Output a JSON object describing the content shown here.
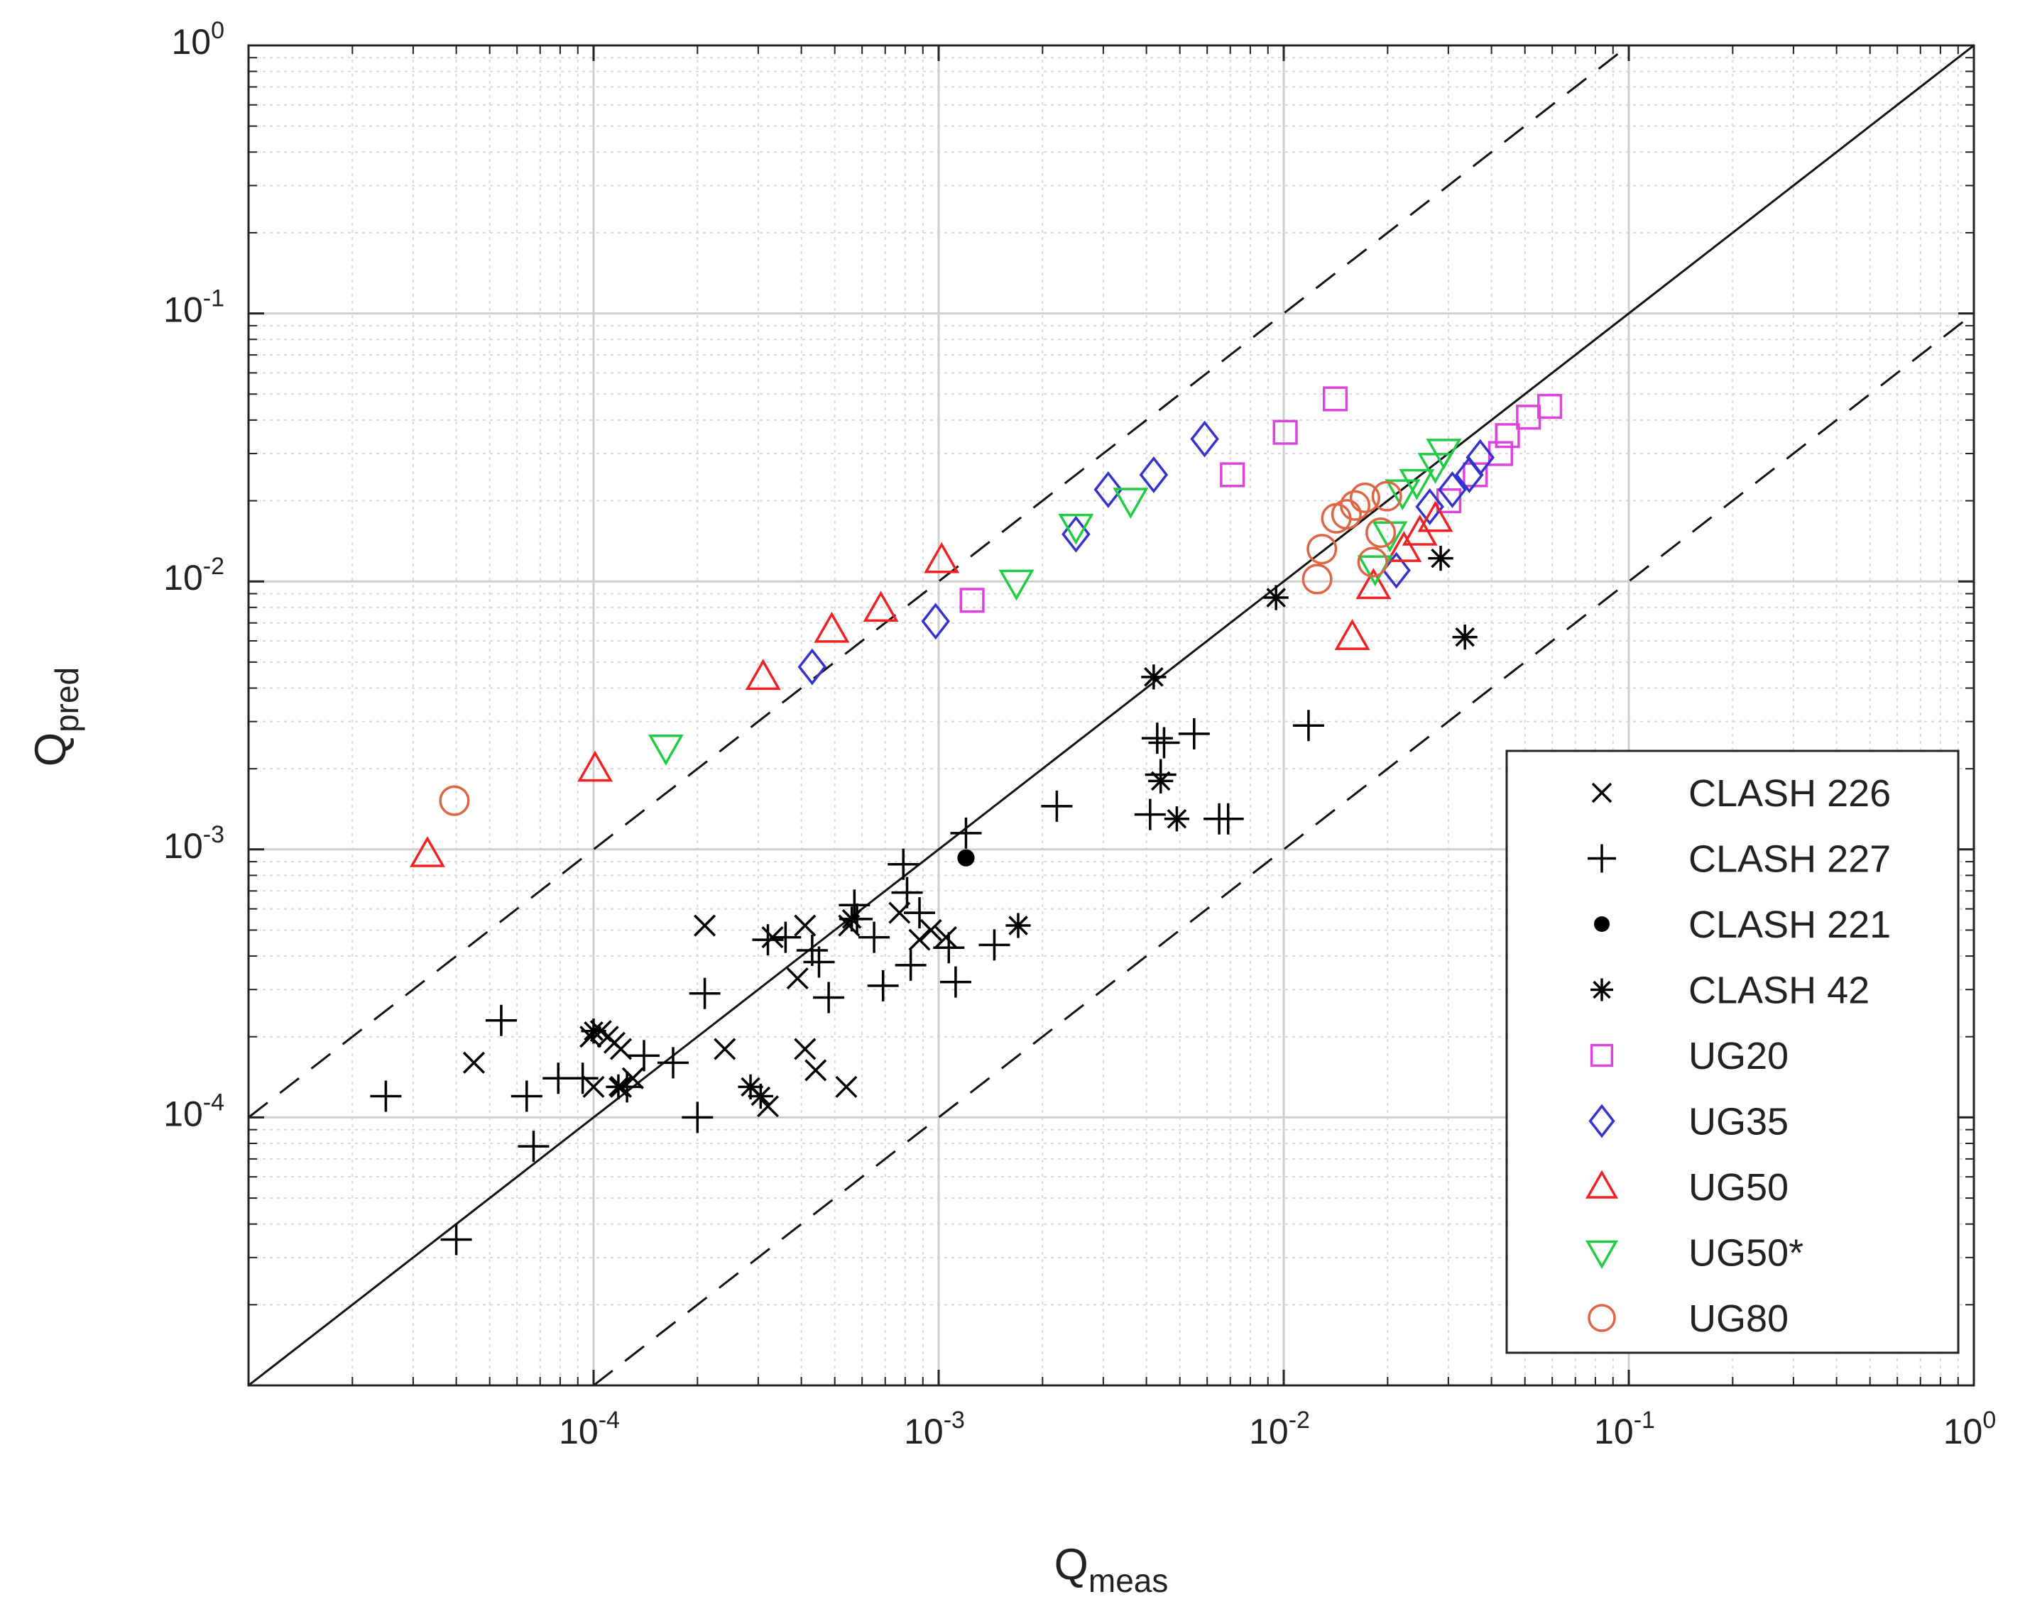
{
  "chart_data": {
    "type": "scatter",
    "x_scale": "log",
    "y_scale": "log",
    "xlim": [
      1e-05,
      1
    ],
    "ylim": [
      1e-05,
      1
    ],
    "grid": true,
    "legend_position": "bottom-right",
    "xlabel": {
      "base": "Q",
      "sub": "meas"
    },
    "ylabel": {
      "base": "Q",
      "sub": "pred"
    },
    "x_ticks": [
      {
        "base": "10",
        "exp": "-4",
        "value": 0.0001
      },
      {
        "base": "10",
        "exp": "-3",
        "value": 0.001
      },
      {
        "base": "10",
        "exp": "-2",
        "value": 0.01
      },
      {
        "base": "10",
        "exp": "-1",
        "value": 0.1
      },
      {
        "base": "10",
        "exp": "0",
        "value": 1
      }
    ],
    "y_ticks": [
      {
        "base": "10",
        "exp": "-4",
        "value": 0.0001
      },
      {
        "base": "10",
        "exp": "-3",
        "value": 0.001
      },
      {
        "base": "10",
        "exp": "-2",
        "value": 0.01
      },
      {
        "base": "10",
        "exp": "-1",
        "value": 0.1
      },
      {
        "base": "10",
        "exp": "0",
        "value": 1
      }
    ],
    "reference_lines": [
      {
        "name": "line of perfect agreement",
        "style": "solid",
        "factor": 1
      },
      {
        "name": "factor 10 over",
        "style": "dashed",
        "factor": 10
      },
      {
        "name": "factor 10 under",
        "style": "dashed",
        "factor": 0.1
      }
    ],
    "series": [
      {
        "name": "CLASH 226",
        "marker": "x",
        "color": "#000000",
        "points": [
          [
            4.5e-05,
            0.00016
          ],
          [
            0.0001,
            0.00013
          ],
          [
            9.8e-05,
            0.0002
          ],
          [
            0.000105,
            0.00021
          ],
          [
            0.00011,
            0.0002
          ],
          [
            0.000115,
            0.00019
          ],
          [
            0.00012,
            0.00018
          ],
          [
            0.00012,
            0.00013
          ],
          [
            0.00013,
            0.00014
          ],
          [
            0.00021,
            0.00052
          ],
          [
            0.00024,
            0.00018
          ],
          [
            0.00032,
            0.00011
          ],
          [
            0.00033,
            0.00047
          ],
          [
            0.00039,
            0.00033
          ],
          [
            0.00041,
            0.00018
          ],
          [
            0.00041,
            0.00052
          ],
          [
            0.00044,
            0.00015
          ],
          [
            0.00054,
            0.00013
          ],
          [
            0.00055,
            0.00052
          ],
          [
            0.00077,
            0.00058
          ],
          [
            0.00088,
            0.00046
          ],
          [
            0.00095,
            0.0005
          ],
          [
            0.00105,
            0.00047
          ]
        ]
      },
      {
        "name": "CLASH 227",
        "marker": "+",
        "color": "#000000",
        "points": [
          [
            2.5e-05,
            0.00012
          ],
          [
            4e-05,
            3.5e-05
          ],
          [
            5.4e-05,
            0.00023
          ],
          [
            6.4e-05,
            0.00012
          ],
          [
            6.7e-05,
            7.8e-05
          ],
          [
            7.9e-05,
            0.00014
          ],
          [
            9.3e-05,
            0.00014
          ],
          [
            0.000125,
            0.00013
          ],
          [
            0.00014,
            0.00017
          ],
          [
            0.00017,
            0.00016
          ],
          [
            0.0002,
            0.0001
          ],
          [
            0.00021,
            0.00029
          ],
          [
            0.00032,
            0.00046
          ],
          [
            0.00036,
            0.00047
          ],
          [
            0.00043,
            0.00042
          ],
          [
            0.00045,
            0.00038
          ],
          [
            0.00048,
            0.00028
          ],
          [
            0.00057,
            0.00062
          ],
          [
            0.00058,
            0.00055
          ],
          [
            0.00065,
            0.00047
          ],
          [
            0.00069,
            0.00031
          ],
          [
            0.00079,
            0.00088
          ],
          [
            0.00081,
            0.00069
          ],
          [
            0.00083,
            0.00037
          ],
          [
            0.00088,
            0.00058
          ],
          [
            0.00107,
            0.00043
          ],
          [
            0.00112,
            0.00032
          ],
          [
            0.0012,
            0.00115
          ],
          [
            0.00145,
            0.00044
          ],
          [
            0.0022,
            0.00145
          ],
          [
            0.0041,
            0.00135
          ],
          [
            0.0043,
            0.0026
          ],
          [
            0.0044,
            0.0019
          ],
          [
            0.0045,
            0.0025
          ],
          [
            0.0055,
            0.0027
          ],
          [
            0.0065,
            0.0013
          ],
          [
            0.0069,
            0.0013
          ],
          [
            0.0118,
            0.0029
          ]
        ]
      },
      {
        "name": "CLASH 221",
        "marker": "filled-circle",
        "color": "#000000",
        "points": [
          [
            0.0012,
            0.00093
          ]
        ]
      },
      {
        "name": "CLASH 42",
        "marker": "asterisk",
        "color": "#000000",
        "points": [
          [
            0.0001,
            0.00021
          ],
          [
            0.000118,
            0.00013
          ],
          [
            0.000285,
            0.00013
          ],
          [
            0.000305,
            0.00012
          ],
          [
            0.00056,
            0.00055
          ],
          [
            0.0017,
            0.00052
          ],
          [
            0.0042,
            0.0044
          ],
          [
            0.0044,
            0.0018
          ],
          [
            0.0049,
            0.0013
          ],
          [
            0.0095,
            0.0087
          ],
          [
            0.0285,
            0.0122
          ],
          [
            0.0335,
            0.0062
          ]
        ]
      },
      {
        "name": "UG20",
        "marker": "square",
        "color": "#dd44dd",
        "points": [
          [
            0.00125,
            0.0085
          ],
          [
            0.0071,
            0.025
          ],
          [
            0.0101,
            0.036
          ],
          [
            0.0141,
            0.048
          ],
          [
            0.0301,
            0.02
          ],
          [
            0.0359,
            0.025
          ],
          [
            0.0425,
            0.03
          ],
          [
            0.0445,
            0.035
          ],
          [
            0.0512,
            0.041
          ],
          [
            0.059,
            0.045
          ]
        ]
      },
      {
        "name": "UG35",
        "marker": "diamond",
        "color": "#3333cc",
        "points": [
          [
            0.00043,
            0.0048
          ],
          [
            0.00098,
            0.0071
          ],
          [
            0.0025,
            0.015
          ],
          [
            0.0031,
            0.022
          ],
          [
            0.0042,
            0.025
          ],
          [
            0.0059,
            0.034
          ],
          [
            0.0212,
            0.011
          ],
          [
            0.0265,
            0.019
          ],
          [
            0.0308,
            0.022
          ],
          [
            0.0345,
            0.025
          ],
          [
            0.0371,
            0.029
          ]
        ]
      },
      {
        "name": "UG50",
        "marker": "triangle-up",
        "color": "#ee2222",
        "points": [
          [
            3.3e-05,
            0.00096
          ],
          [
            0.000101,
            0.002
          ],
          [
            0.00031,
            0.0044
          ],
          [
            0.00049,
            0.0066
          ],
          [
            0.00068,
            0.0079
          ],
          [
            0.00102,
            0.012
          ],
          [
            0.0158,
            0.0062
          ],
          [
            0.0182,
            0.0096
          ],
          [
            0.0223,
            0.0132
          ],
          [
            0.0248,
            0.0152
          ],
          [
            0.0275,
            0.0171
          ]
        ]
      },
      {
        "name": "UG50*",
        "marker": "triangle-down",
        "color": "#22cc44",
        "points": [
          [
            0.000162,
            0.0024
          ],
          [
            0.00168,
            0.0099
          ],
          [
            0.0025,
            0.016
          ],
          [
            0.0036,
            0.02
          ],
          [
            0.0184,
            0.0112
          ],
          [
            0.0203,
            0.015
          ],
          [
            0.0221,
            0.0215
          ],
          [
            0.0243,
            0.0235
          ],
          [
            0.0275,
            0.027
          ],
          [
            0.0291,
            0.0305
          ]
        ]
      },
      {
        "name": "UG80",
        "marker": "circle",
        "color": "#dd6644",
        "points": [
          [
            3.95e-05,
            0.00152
          ],
          [
            0.0125,
            0.0102
          ],
          [
            0.0129,
            0.0132
          ],
          [
            0.0142,
            0.0172
          ],
          [
            0.0152,
            0.0178
          ],
          [
            0.0161,
            0.0192
          ],
          [
            0.0172,
            0.0205
          ],
          [
            0.0181,
            0.0118
          ],
          [
            0.0191,
            0.0152
          ],
          [
            0.0199,
            0.0208
          ]
        ]
      }
    ]
  }
}
